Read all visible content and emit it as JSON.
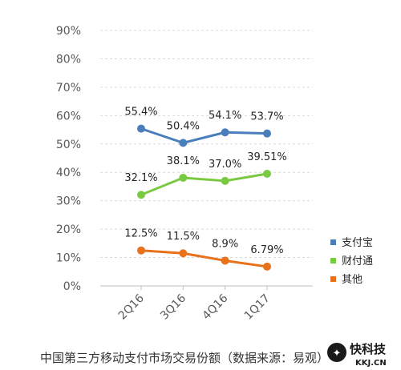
{
  "chart_data": {
    "type": "line",
    "categories": [
      "2Q16",
      "3Q16",
      "4Q16",
      "1Q17"
    ],
    "series": [
      {
        "name": "支付宝",
        "values": [
          55.4,
          50.4,
          54.1,
          53.7
        ],
        "labels": [
          "55.4%",
          "50.4%",
          "54.1%",
          "53.7%"
        ],
        "color": "#4a7ebb"
      },
      {
        "name": "财付通",
        "values": [
          32.1,
          38.1,
          37.0,
          39.51
        ],
        "labels": [
          "32.1%",
          "38.1%",
          "37.0%",
          "39.51%"
        ],
        "color": "#7ac943"
      },
      {
        "name": "其他",
        "values": [
          12.5,
          11.5,
          8.9,
          6.79
        ],
        "labels": [
          "12.5%",
          "11.5%",
          "8.9%",
          "6.79%"
        ],
        "color": "#e8711c"
      }
    ],
    "y_ticks": [
      "0%",
      "10%",
      "20%",
      "30%",
      "40%",
      "50%",
      "60%",
      "70%",
      "80%",
      "90%"
    ],
    "ylim": [
      0,
      90
    ],
    "grid": true,
    "legend_position": "right",
    "caption": "中国第三方移动支付市场交易份额（数据来源：易观）"
  },
  "watermark": {
    "brand": "快科技",
    "domain": "KKJ.CN"
  },
  "colors": {
    "grid": "#d9d9d9",
    "axis": "#bfbfbf"
  }
}
